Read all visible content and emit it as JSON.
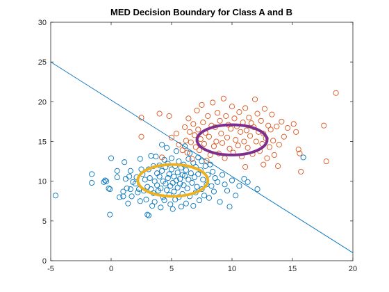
{
  "chart_data": {
    "type": "scatter",
    "title": "MED Decision Boundary for Class A and B",
    "xlabel": "",
    "ylabel": "",
    "xlim": [
      -5,
      20
    ],
    "ylim": [
      0,
      30
    ],
    "xticks": [
      -5,
      0,
      5,
      10,
      15,
      20
    ],
    "yticks": [
      0,
      5,
      10,
      15,
      20,
      25,
      30
    ],
    "x_tick_labels": [
      "-5",
      "0",
      "5",
      "10",
      "15",
      "20"
    ],
    "y_tick_labels": [
      "0",
      "5",
      "10",
      "15",
      "20",
      "25",
      "30"
    ],
    "grid": false,
    "legend": "none",
    "series": [
      {
        "color": "#0072BD",
        "marker": "open-circle",
        "points": [
          [
            -4.6,
            8.2
          ],
          [
            -1.6,
            10.9
          ],
          [
            -1.6,
            9.8
          ],
          [
            -0.6,
            9.9
          ],
          [
            -0.5,
            10.1
          ],
          [
            -0.4,
            10.0
          ],
          [
            -0.2,
            9.1
          ],
          [
            -0.1,
            9.0
          ],
          [
            0.0,
            12.9
          ],
          [
            -0.1,
            5.8
          ],
          [
            0.5,
            11.3
          ],
          [
            0.5,
            10.5
          ],
          [
            0.7,
            8.0
          ],
          [
            1.0,
            8.7
          ],
          [
            1.0,
            8.1
          ],
          [
            1.1,
            12.4
          ],
          [
            1.2,
            10.3
          ],
          [
            1.3,
            9.1
          ],
          [
            1.4,
            7.2
          ],
          [
            1.5,
            10.6
          ],
          [
            1.6,
            11.3
          ],
          [
            1.6,
            9.0
          ],
          [
            1.7,
            8.1
          ],
          [
            1.8,
            9.9
          ],
          [
            2.0,
            9.7
          ],
          [
            2.1,
            10.5
          ],
          [
            2.2,
            8.6
          ],
          [
            2.3,
            9.0
          ],
          [
            2.4,
            12.8
          ],
          [
            2.4,
            7.5
          ],
          [
            2.5,
            11.5
          ],
          [
            2.6,
            10.9
          ],
          [
            2.7,
            8.8
          ],
          [
            2.8,
            10.2
          ],
          [
            2.9,
            7.7
          ],
          [
            3.0,
            5.8
          ],
          [
            3.0,
            9.3
          ],
          [
            3.1,
            5.7
          ],
          [
            3.1,
            11.5
          ],
          [
            3.2,
            10.4
          ],
          [
            3.3,
            9.0
          ],
          [
            3.3,
            13.2
          ],
          [
            3.4,
            6.9
          ],
          [
            3.5,
            11.9
          ],
          [
            3.5,
            8.5
          ],
          [
            3.6,
            10.0
          ],
          [
            3.6,
            7.4
          ],
          [
            3.7,
            13.1
          ],
          [
            3.8,
            9.5
          ],
          [
            3.8,
            11.0
          ],
          [
            3.9,
            8.8
          ],
          [
            4.0,
            10.6
          ],
          [
            4.0,
            12.0
          ],
          [
            4.1,
            9.1
          ],
          [
            4.1,
            6.7
          ],
          [
            4.2,
            14.6
          ],
          [
            4.2,
            11.3
          ],
          [
            4.3,
            10.0
          ],
          [
            4.3,
            8.0
          ],
          [
            4.4,
            12.7
          ],
          [
            4.4,
            7.6
          ],
          [
            4.5,
            9.7
          ],
          [
            4.5,
            11.8
          ],
          [
            4.6,
            8.9
          ],
          [
            4.6,
            14.2
          ],
          [
            4.7,
            10.4
          ],
          [
            4.7,
            12.2
          ],
          [
            4.8,
            8.3
          ],
          [
            4.8,
            10.9
          ],
          [
            4.9,
            7.1
          ],
          [
            4.9,
            9.4
          ],
          [
            5.0,
            11.5
          ],
          [
            5.0,
            12.9
          ],
          [
            5.1,
            9.8
          ],
          [
            5.1,
            6.5
          ],
          [
            5.2,
            10.6
          ],
          [
            5.2,
            8.7
          ],
          [
            5.3,
            11.9
          ],
          [
            5.3,
            7.7
          ],
          [
            5.4,
            10.1
          ],
          [
            5.4,
            13.8
          ],
          [
            5.5,
            9.2
          ],
          [
            5.5,
            11.1
          ],
          [
            5.6,
            8.0
          ],
          [
            5.6,
            12.5
          ],
          [
            5.7,
            10.3
          ],
          [
            5.7,
            9.7
          ],
          [
            5.8,
            11.7
          ],
          [
            5.8,
            6.8
          ],
          [
            5.9,
            10.8
          ],
          [
            5.9,
            8.4
          ],
          [
            6.0,
            12.1
          ],
          [
            6.0,
            9.5
          ],
          [
            6.1,
            14.4
          ],
          [
            6.1,
            10.7
          ],
          [
            6.2,
            7.2
          ],
          [
            6.2,
            11.4
          ],
          [
            6.3,
            9.1
          ],
          [
            6.4,
            12.8
          ],
          [
            6.4,
            10.2
          ],
          [
            6.5,
            8.1
          ],
          [
            6.5,
            13.5
          ],
          [
            6.6,
            11.0
          ],
          [
            6.7,
            9.8
          ],
          [
            6.8,
            6.9
          ],
          [
            6.8,
            12.3
          ],
          [
            6.9,
            10.5
          ],
          [
            7.0,
            8.6
          ],
          [
            7.0,
            11.8
          ],
          [
            7.1,
            9.3
          ],
          [
            7.2,
            13.0
          ],
          [
            7.2,
            10.9
          ],
          [
            7.3,
            7.6
          ],
          [
            7.4,
            11.4
          ],
          [
            7.5,
            9.0
          ],
          [
            7.5,
            12.5
          ],
          [
            7.6,
            10.2
          ],
          [
            7.7,
            8.2
          ],
          [
            7.8,
            11.9
          ],
          [
            7.9,
            9.6
          ],
          [
            8.0,
            10.8
          ],
          [
            8.1,
            7.9
          ],
          [
            8.2,
            12.1
          ],
          [
            8.3,
            9.4
          ],
          [
            8.4,
            11.2
          ],
          [
            8.5,
            8.7
          ],
          [
            8.6,
            10.4
          ],
          [
            8.8,
            9.9
          ],
          [
            9.0,
            7.4
          ],
          [
            9.2,
            10.8
          ],
          [
            9.4,
            9.6
          ],
          [
            9.6,
            8.8
          ],
          [
            9.8,
            6.8
          ],
          [
            10.0,
            10.1
          ],
          [
            10.3,
            8.2
          ],
          [
            10.6,
            9.4
          ],
          [
            11.0,
            10.3
          ],
          [
            11.3,
            9.9
          ],
          [
            12.1,
            9.0
          ],
          [
            15.9,
            13.0
          ]
        ]
      },
      {
        "color": "#D95319",
        "marker": "open-circle",
        "points": [
          [
            2.5,
            18.0
          ],
          [
            2.5,
            15.6
          ],
          [
            4.0,
            18.5
          ],
          [
            4.2,
            13.0
          ],
          [
            4.8,
            18.2
          ],
          [
            5.0,
            15.5
          ],
          [
            5.4,
            16.0
          ],
          [
            5.6,
            14.6
          ],
          [
            5.9,
            13.9
          ],
          [
            6.1,
            16.8
          ],
          [
            6.2,
            15.1
          ],
          [
            6.3,
            13.6
          ],
          [
            6.4,
            17.9
          ],
          [
            6.5,
            16.2
          ],
          [
            6.6,
            14.9
          ],
          [
            6.7,
            12.8
          ],
          [
            6.8,
            17.2
          ],
          [
            6.9,
            15.8
          ],
          [
            7.0,
            14.3
          ],
          [
            7.1,
            18.9
          ],
          [
            7.2,
            16.5
          ],
          [
            7.3,
            13.9
          ],
          [
            7.4,
            15.3
          ],
          [
            7.5,
            19.6
          ],
          [
            7.6,
            17.4
          ],
          [
            7.7,
            14.7
          ],
          [
            7.8,
            16.1
          ],
          [
            7.9,
            12.6
          ],
          [
            8.0,
            18.2
          ],
          [
            8.1,
            15.6
          ],
          [
            8.2,
            13.3
          ],
          [
            8.3,
            17.0
          ],
          [
            8.4,
            19.9
          ],
          [
            8.5,
            14.4
          ],
          [
            8.6,
            16.8
          ],
          [
            8.7,
            15.0
          ],
          [
            8.8,
            18.6
          ],
          [
            8.9,
            13.5
          ],
          [
            9.0,
            17.6
          ],
          [
            9.1,
            16.0
          ],
          [
            9.2,
            14.8
          ],
          [
            9.3,
            20.4
          ],
          [
            9.4,
            12.9
          ],
          [
            9.5,
            18.2
          ],
          [
            9.6,
            15.5
          ],
          [
            9.7,
            17.1
          ],
          [
            9.8,
            14.1
          ],
          [
            9.9,
            16.6
          ],
          [
            10.0,
            19.4
          ],
          [
            10.1,
            13.6
          ],
          [
            10.2,
            17.9
          ],
          [
            10.3,
            15.2
          ],
          [
            10.4,
            16.9
          ],
          [
            10.5,
            14.5
          ],
          [
            10.6,
            18.7
          ],
          [
            10.7,
            16.2
          ],
          [
            10.8,
            13.1
          ],
          [
            10.9,
            17.4
          ],
          [
            11.0,
            15.0
          ],
          [
            11.1,
            19.2
          ],
          [
            11.2,
            16.4
          ],
          [
            11.3,
            14.2
          ],
          [
            11.4,
            18.0
          ],
          [
            11.5,
            15.7
          ],
          [
            11.6,
            17.3
          ],
          [
            11.7,
            13.4
          ],
          [
            11.8,
            16.8
          ],
          [
            11.9,
            20.3
          ],
          [
            12.0,
            15.0
          ],
          [
            12.1,
            18.5
          ],
          [
            12.2,
            16.2
          ],
          [
            12.3,
            13.8
          ],
          [
            12.4,
            17.6
          ],
          [
            12.5,
            14.7
          ],
          [
            12.6,
            16.0
          ],
          [
            12.7,
            19.1
          ],
          [
            12.8,
            15.4
          ],
          [
            12.9,
            12.9
          ],
          [
            13.0,
            17.0
          ],
          [
            13.1,
            14.3
          ],
          [
            13.2,
            16.5
          ],
          [
            13.3,
            18.4
          ],
          [
            13.4,
            15.1
          ],
          [
            13.5,
            13.3
          ],
          [
            13.7,
            16.9
          ],
          [
            13.9,
            14.6
          ],
          [
            14.1,
            17.5
          ],
          [
            14.3,
            15.6
          ],
          [
            14.6,
            16.7
          ],
          [
            15.1,
            17.2
          ],
          [
            15.3,
            16.2
          ],
          [
            15.5,
            14.0
          ],
          [
            15.6,
            13.5
          ],
          [
            15.7,
            11.2
          ],
          [
            17.6,
            17.0
          ],
          [
            17.8,
            12.5
          ],
          [
            18.6,
            21.1
          ],
          [
            13.8,
            11.9
          ],
          [
            12.6,
            12.1
          ],
          [
            11.1,
            11.8
          ]
        ]
      }
    ],
    "decision_boundary": {
      "color": "#0072BD",
      "x": [
        -5,
        20
      ],
      "y": [
        25.0,
        1.0
      ]
    },
    "prototype_ellipses": [
      {
        "color": "#EDB120",
        "cx": 5.1,
        "cy": 10.1,
        "rx": 2.9,
        "ry": 2.0
      },
      {
        "color": "#7E2F8E",
        "cx": 10.0,
        "cy": 15.2,
        "rx": 2.9,
        "ry": 1.9
      }
    ]
  }
}
